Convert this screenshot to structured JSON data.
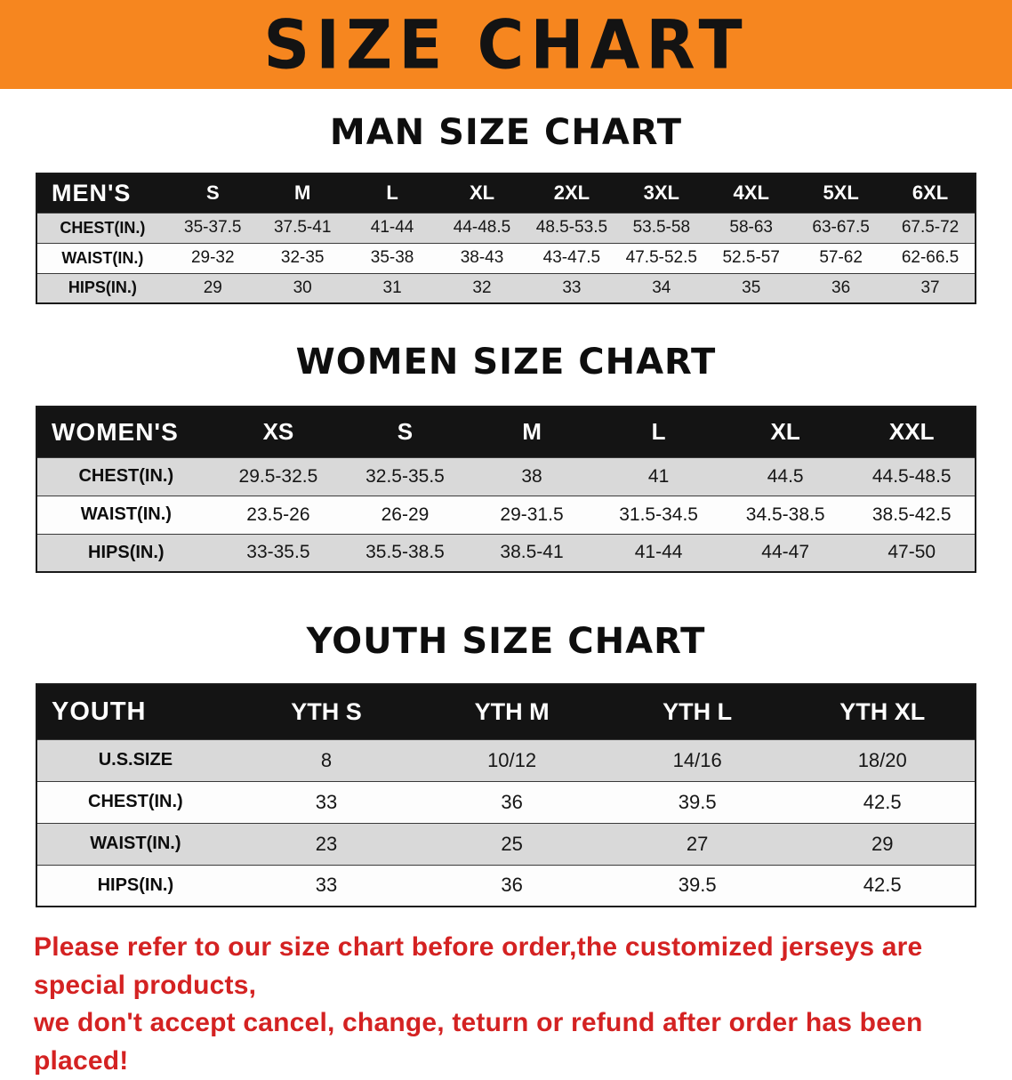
{
  "banner": {
    "title": "SIZE CHART",
    "bg_color": "#f6861f",
    "text_color": "#131313"
  },
  "chart_data": [
    {
      "type": "table",
      "section_title": "MAN SIZE CHART",
      "header": [
        "MEN'S",
        "S",
        "M",
        "L",
        "XL",
        "2XL",
        "3XL",
        "4XL",
        "5XL",
        "6XL"
      ],
      "rows": [
        [
          "CHEST(IN.)",
          "35-37.5",
          "37.5-41",
          "41-44",
          "44-48.5",
          "48.5-53.5",
          "53.5-58",
          "58-63",
          "63-67.5",
          "67.5-72"
        ],
        [
          "WAIST(IN.)",
          "29-32",
          "32-35",
          "35-38",
          "38-43",
          "43-47.5",
          "47.5-52.5",
          "52.5-57",
          "57-62",
          "62-66.5"
        ],
        [
          "HIPS(IN.)",
          "29",
          "30",
          "31",
          "32",
          "33",
          "34",
          "35",
          "36",
          "37"
        ]
      ]
    },
    {
      "type": "table",
      "section_title": "WOMEN SIZE CHART",
      "header": [
        "WOMEN'S",
        "XS",
        "S",
        "M",
        "L",
        "XL",
        "XXL"
      ],
      "rows": [
        [
          "CHEST(IN.)",
          "29.5-32.5",
          "32.5-35.5",
          "38",
          "41",
          "44.5",
          "44.5-48.5"
        ],
        [
          "WAIST(IN.)",
          "23.5-26",
          "26-29",
          "29-31.5",
          "31.5-34.5",
          "34.5-38.5",
          "38.5-42.5"
        ],
        [
          "HIPS(IN.)",
          "33-35.5",
          "35.5-38.5",
          "38.5-41",
          "41-44",
          "44-47",
          "47-50"
        ]
      ]
    },
    {
      "type": "table",
      "section_title": "YOUTH SIZE CHART",
      "header": [
        "YOUTH",
        "YTH S",
        "YTH M",
        "YTH L",
        "YTH XL"
      ],
      "rows": [
        [
          "U.S.SIZE",
          "8",
          "10/12",
          "14/16",
          "18/20"
        ],
        [
          "CHEST(IN.)",
          "33",
          "36",
          "39.5",
          "42.5"
        ],
        [
          "WAIST(IN.)",
          "23",
          "25",
          "27",
          "29"
        ],
        [
          "HIPS(IN.)",
          "33",
          "36",
          "39.5",
          "42.5"
        ]
      ]
    }
  ],
  "disclaimer": {
    "line1": "Please refer to our size chart before order,the customized jerseys are special products,",
    "line2": "we don't accept cancel, change, teturn or refund after order has been placed!",
    "text_color": "#d42222"
  }
}
